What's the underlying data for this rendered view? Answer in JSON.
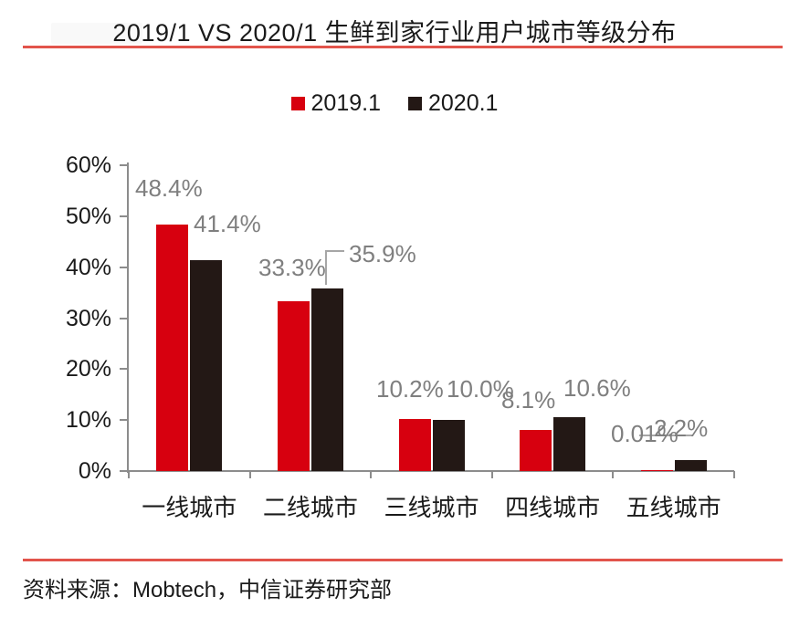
{
  "header": {
    "title": "2019/1 VS 2020/1 生鲜到家行业用户城市等级分布",
    "rule_color": "#e2544b"
  },
  "legend": {
    "items": [
      {
        "label": "2019.1",
        "color": "#d7000f"
      },
      {
        "label": "2020.1",
        "color": "#231815"
      }
    ]
  },
  "chart_data": {
    "type": "bar",
    "title": "2019/1 VS 2020/1 生鲜到家行业用户城市等级分布",
    "categories": [
      "一线城市",
      "二线城市",
      "三线城市",
      "四线城市",
      "五线城市"
    ],
    "series": [
      {
        "name": "2019.1",
        "color": "#d7000f",
        "values": [
          48.4,
          33.3,
          10.2,
          8.1,
          0.01
        ],
        "data_labels": [
          "48.4%",
          "33.3%",
          "10.2%",
          "8.1%",
          "0.01%"
        ]
      },
      {
        "name": "2020.1",
        "color": "#231815",
        "values": [
          41.4,
          35.9,
          10.0,
          10.6,
          2.2
        ],
        "data_labels": [
          "41.4%",
          "35.9%",
          "10.0%",
          "10.6%",
          "2.2%"
        ]
      }
    ],
    "ylim": [
      0,
      60
    ],
    "ytick_step": 10,
    "yticks": [
      "0%",
      "10%",
      "20%",
      "30%",
      "40%",
      "50%",
      "60%"
    ],
    "grid": false,
    "legend_position": "top-center",
    "axis_color": "#8c8c8c",
    "data_label_color": "#7f7f7f"
  },
  "footer": {
    "source": "资料来源：Mobtech，中信证券研究部",
    "rule_color": "#e2544b"
  }
}
